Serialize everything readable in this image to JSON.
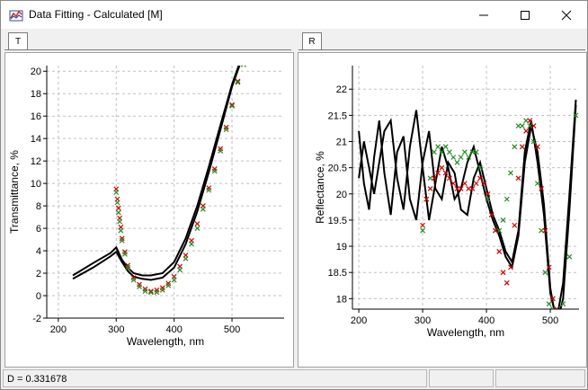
{
  "window": {
    "title": "Data Fitting - Calculated [M]"
  },
  "tabs": {
    "left": "T",
    "right": "R"
  },
  "status": {
    "text": "D = 0.331678"
  },
  "chart_data": [
    {
      "type": "line",
      "xlabel": "Wavelength, nm",
      "ylabel": "Transmittance, %",
      "xlim": [
        180,
        590
      ],
      "ylim": [
        -2,
        20.5
      ],
      "xticks": [
        200,
        300,
        400,
        500
      ],
      "yticks": [
        -2,
        0,
        2,
        4,
        6,
        8,
        10,
        12,
        14,
        16,
        18,
        20
      ],
      "grid": true,
      "series": [
        {
          "color": "#000000",
          "style": "line",
          "x": [
            225,
            260,
            290,
            300,
            310,
            320,
            330,
            345,
            360,
            380,
            400,
            420,
            440,
            460,
            480,
            500,
            515,
            530
          ],
          "y": [
            1.8,
            2.9,
            3.8,
            4.3,
            3.2,
            2.5,
            2.0,
            1.8,
            1.8,
            2.0,
            3.0,
            5.1,
            8.0,
            11.5,
            15.2,
            18.8,
            21.0,
            21.5
          ]
        },
        {
          "color": "#000000",
          "style": "line",
          "x": [
            225,
            260,
            290,
            300,
            310,
            320,
            330,
            345,
            360,
            380,
            400,
            420,
            440,
            460,
            480,
            500,
            515,
            530
          ],
          "y": [
            1.5,
            2.5,
            3.5,
            3.9,
            3.0,
            2.2,
            1.7,
            1.5,
            1.4,
            1.6,
            2.5,
            4.6,
            7.5,
            11.0,
            14.8,
            18.6,
            20.8,
            21.4
          ]
        },
        {
          "color": "#cc0000",
          "style": "marker",
          "x": [
            300,
            302,
            304,
            306,
            308,
            310,
            315,
            320,
            330,
            340,
            350,
            360,
            370,
            380,
            390,
            400,
            410,
            420,
            430,
            440,
            450,
            460,
            470,
            480,
            490,
            500,
            510,
            520,
            530
          ],
          "y": [
            9.5,
            8.6,
            7.8,
            6.9,
            6.1,
            5.1,
            3.9,
            2.7,
            1.6,
            1.0,
            0.6,
            0.4,
            0.5,
            0.7,
            1.1,
            1.7,
            2.6,
            3.6,
            4.9,
            6.4,
            8.0,
            9.6,
            11.3,
            13.1,
            15.0,
            17.0,
            19.1,
            20.6,
            21.5
          ]
        },
        {
          "color": "#228b22",
          "style": "marker",
          "x": [
            300,
            302,
            304,
            306,
            308,
            310,
            315,
            320,
            330,
            340,
            350,
            360,
            370,
            380,
            390,
            400,
            410,
            420,
            430,
            440,
            450,
            460,
            470,
            480,
            490,
            500,
            510,
            520,
            530
          ],
          "y": [
            9.2,
            8.3,
            7.4,
            6.6,
            5.8,
            4.9,
            3.7,
            2.5,
            1.4,
            0.8,
            0.4,
            0.3,
            0.3,
            0.5,
            0.9,
            1.4,
            2.3,
            3.3,
            4.6,
            6.0,
            7.7,
            9.4,
            11.1,
            12.9,
            14.8,
            16.9,
            19.0,
            20.6,
            21.5
          ]
        }
      ]
    },
    {
      "type": "line",
      "xlabel": "Wavelength, nm",
      "ylabel": "Reflectance, %",
      "xlim": [
        190,
        545
      ],
      "ylim": [
        17.8,
        22.45
      ],
      "xticks": [
        200,
        300,
        400,
        500
      ],
      "yticks": [
        18,
        18.5,
        19,
        19.5,
        20,
        20.5,
        21,
        21.5,
        22
      ],
      "grid": true,
      "series": [
        {
          "color": "#000000",
          "style": "line",
          "x": [
            200,
            208,
            216,
            224,
            232,
            240,
            250,
            260,
            270,
            280,
            290,
            300,
            310,
            320,
            330,
            340,
            350,
            360,
            370,
            380,
            390,
            400,
            410,
            420,
            430,
            440,
            450,
            460,
            470,
            480,
            490,
            500,
            510,
            520,
            530,
            540
          ],
          "y": [
            20.3,
            21.0,
            20.5,
            20.0,
            20.6,
            21.2,
            21.4,
            20.3,
            19.7,
            20.9,
            21.6,
            20.5,
            19.5,
            20.2,
            20.9,
            20.5,
            19.9,
            20.1,
            20.6,
            20.9,
            20.4,
            19.9,
            19.5,
            19.2,
            18.8,
            18.6,
            19.2,
            20.6,
            21.3,
            20.8,
            19.8,
            18.2,
            17.5,
            18.0,
            19.7,
            21.7
          ]
        },
        {
          "color": "#000000",
          "style": "line",
          "x": [
            200,
            208,
            216,
            224,
            232,
            240,
            250,
            260,
            270,
            280,
            290,
            300,
            310,
            320,
            330,
            340,
            350,
            360,
            370,
            380,
            390,
            400,
            410,
            420,
            430,
            440,
            450,
            460,
            470,
            480,
            490,
            500,
            510,
            520,
            530,
            540
          ],
          "y": [
            21.2,
            20.2,
            19.7,
            20.7,
            21.4,
            20.4,
            19.6,
            20.8,
            21.1,
            19.9,
            19.5,
            20.6,
            21.2,
            20.1,
            19.9,
            20.6,
            20.4,
            19.7,
            19.6,
            20.3,
            20.6,
            20.1,
            19.6,
            19.3,
            18.9,
            18.7,
            19.3,
            20.8,
            21.4,
            20.6,
            19.6,
            18.1,
            17.6,
            18.3,
            20.0,
            21.8
          ]
        },
        {
          "color": "#228b22",
          "style": "marker",
          "x": [
            300,
            306,
            312,
            318,
            324,
            330,
            336,
            342,
            348,
            354,
            360,
            366,
            372,
            378,
            384,
            390,
            396,
            402,
            408,
            414,
            420,
            426,
            432,
            438,
            444,
            450,
            456,
            462,
            468,
            474,
            480,
            486,
            492,
            498,
            504,
            510,
            520,
            530,
            540
          ],
          "y": [
            19.3,
            19.9,
            20.3,
            20.8,
            20.9,
            20.8,
            20.9,
            20.8,
            20.7,
            20.6,
            20.7,
            20.8,
            20.7,
            20.8,
            20.8,
            20.5,
            20.2,
            19.9,
            19.6,
            19.3,
            19.3,
            19.5,
            19.9,
            20.4,
            20.9,
            21.3,
            21.3,
            21.4,
            21.3,
            21.0,
            20.2,
            19.3,
            18.5,
            17.9,
            17.8,
            17.8,
            17.9,
            18.8,
            21.5
          ]
        },
        {
          "color": "#cc0000",
          "style": "marker",
          "x": [
            300,
            306,
            312,
            318,
            324,
            330,
            336,
            342,
            348,
            354,
            360,
            366,
            372,
            378,
            384,
            390,
            396,
            402,
            408,
            414,
            420,
            426,
            432,
            438,
            444,
            450,
            456,
            462,
            468,
            474,
            480,
            486,
            492,
            498,
            504,
            510
          ],
          "y": [
            19.4,
            19.9,
            20.1,
            20.3,
            20.4,
            20.5,
            20.4,
            20.3,
            20.2,
            20.1,
            20.1,
            20.2,
            20.1,
            20.1,
            20.2,
            20.3,
            20.2,
            20.0,
            19.6,
            19.3,
            18.9,
            18.5,
            18.3,
            18.6,
            19.4,
            20.3,
            20.9,
            21.2,
            21.4,
            21.3,
            20.9,
            20.1,
            19.3,
            18.6,
            18.0,
            17.8
          ]
        }
      ]
    }
  ]
}
